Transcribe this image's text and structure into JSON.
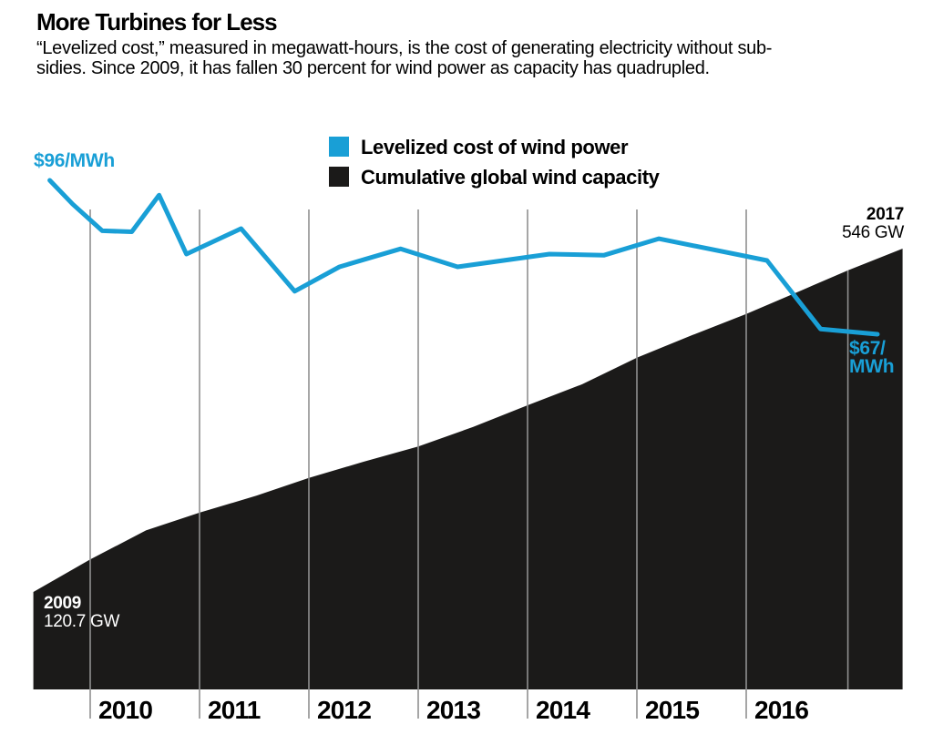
{
  "header": {
    "title": "More Turbines for Less",
    "subtitle_line1": "“Levelized cost,” measured in megawatt-hours, is the cost of generating electricity without sub-",
    "subtitle_line2": "sidies. Since 2009, it has fallen 30 percent for wind power as capacity has quadrupled."
  },
  "legend": {
    "items": [
      {
        "label": "Levelized cost of wind power",
        "color": "#199fd6"
      },
      {
        "label": "Cumulative global wind capacity",
        "color": "#1b1a19"
      }
    ]
  },
  "annotations": {
    "start_cost": "$96/MWh",
    "end_cost_line1": "$67/",
    "end_cost_line2": "MWh",
    "end_year": "2017",
    "end_capacity": "546 GW",
    "start_year": "2009",
    "start_capacity": "120.7 GW"
  },
  "colors": {
    "line_blue": "#199fd6",
    "area_black": "#1b1a19",
    "gridline_gray": "#909090",
    "label_white": "#ffffff"
  },
  "chart_data": {
    "type": "area",
    "title": "More Turbines for Less",
    "x_axis": {
      "range_years": [
        2009.45,
        2017.45
      ],
      "ticks": [
        {
          "year": 2010,
          "label": "2010"
        },
        {
          "year": 2011,
          "label": "2011"
        },
        {
          "year": 2012,
          "label": "2012"
        },
        {
          "year": 2013,
          "label": "2013"
        },
        {
          "year": 2014,
          "label": "2014"
        },
        {
          "year": 2015,
          "label": "2015"
        },
        {
          "year": 2016,
          "label": "2016"
        }
      ],
      "end_gridline": {
        "year": 2016.93,
        "top_gw": 519,
        "bottom_gw": 0
      }
    },
    "grid": "vertical-only",
    "legend_position": "top-center",
    "series": [
      {
        "name": "Levelized cost of wind power",
        "type": "line",
        "unit": "$/MWh",
        "color": "#199fd6",
        "points": [
          [
            2009.63,
            96.0
          ],
          [
            2009.84,
            91.5
          ],
          [
            2010.11,
            86.5
          ],
          [
            2010.38,
            86.3
          ],
          [
            2010.63,
            93.2
          ],
          [
            2010.88,
            82.1
          ],
          [
            2011.38,
            86.9
          ],
          [
            2011.87,
            75.1
          ],
          [
            2012.28,
            79.7
          ],
          [
            2012.51,
            81.1
          ],
          [
            2012.84,
            83.1
          ],
          [
            2013.36,
            79.7
          ],
          [
            2014.2,
            82.1
          ],
          [
            2014.7,
            81.9
          ],
          [
            2015.2,
            85.0
          ],
          [
            2016.19,
            80.9
          ],
          [
            2016.68,
            68.0
          ],
          [
            2017.2,
            67.0
          ]
        ],
        "first_point_label": "$96/MWh",
        "last_point_label": "$67/MWh"
      },
      {
        "name": "Cumulative global wind capacity",
        "type": "area",
        "unit": "GW",
        "color": "#1b1a19",
        "points": [
          [
            2009.48,
            120.7
          ],
          [
            2010.0,
            161
          ],
          [
            2010.51,
            197
          ],
          [
            2011.0,
            219
          ],
          [
            2011.52,
            240
          ],
          [
            2012.0,
            262
          ],
          [
            2012.5,
            282
          ],
          [
            2013.0,
            301
          ],
          [
            2013.5,
            325
          ],
          [
            2014.0,
            352
          ],
          [
            2014.5,
            378
          ],
          [
            2015.0,
            411
          ],
          [
            2015.51,
            439
          ],
          [
            2016.0,
            465
          ],
          [
            2016.5,
            494
          ],
          [
            2016.93,
            519
          ],
          [
            2017.43,
            546
          ]
        ],
        "first_point_label": "2009: 120.7 GW",
        "last_point_label": "2017: 546 GW"
      }
    ]
  }
}
